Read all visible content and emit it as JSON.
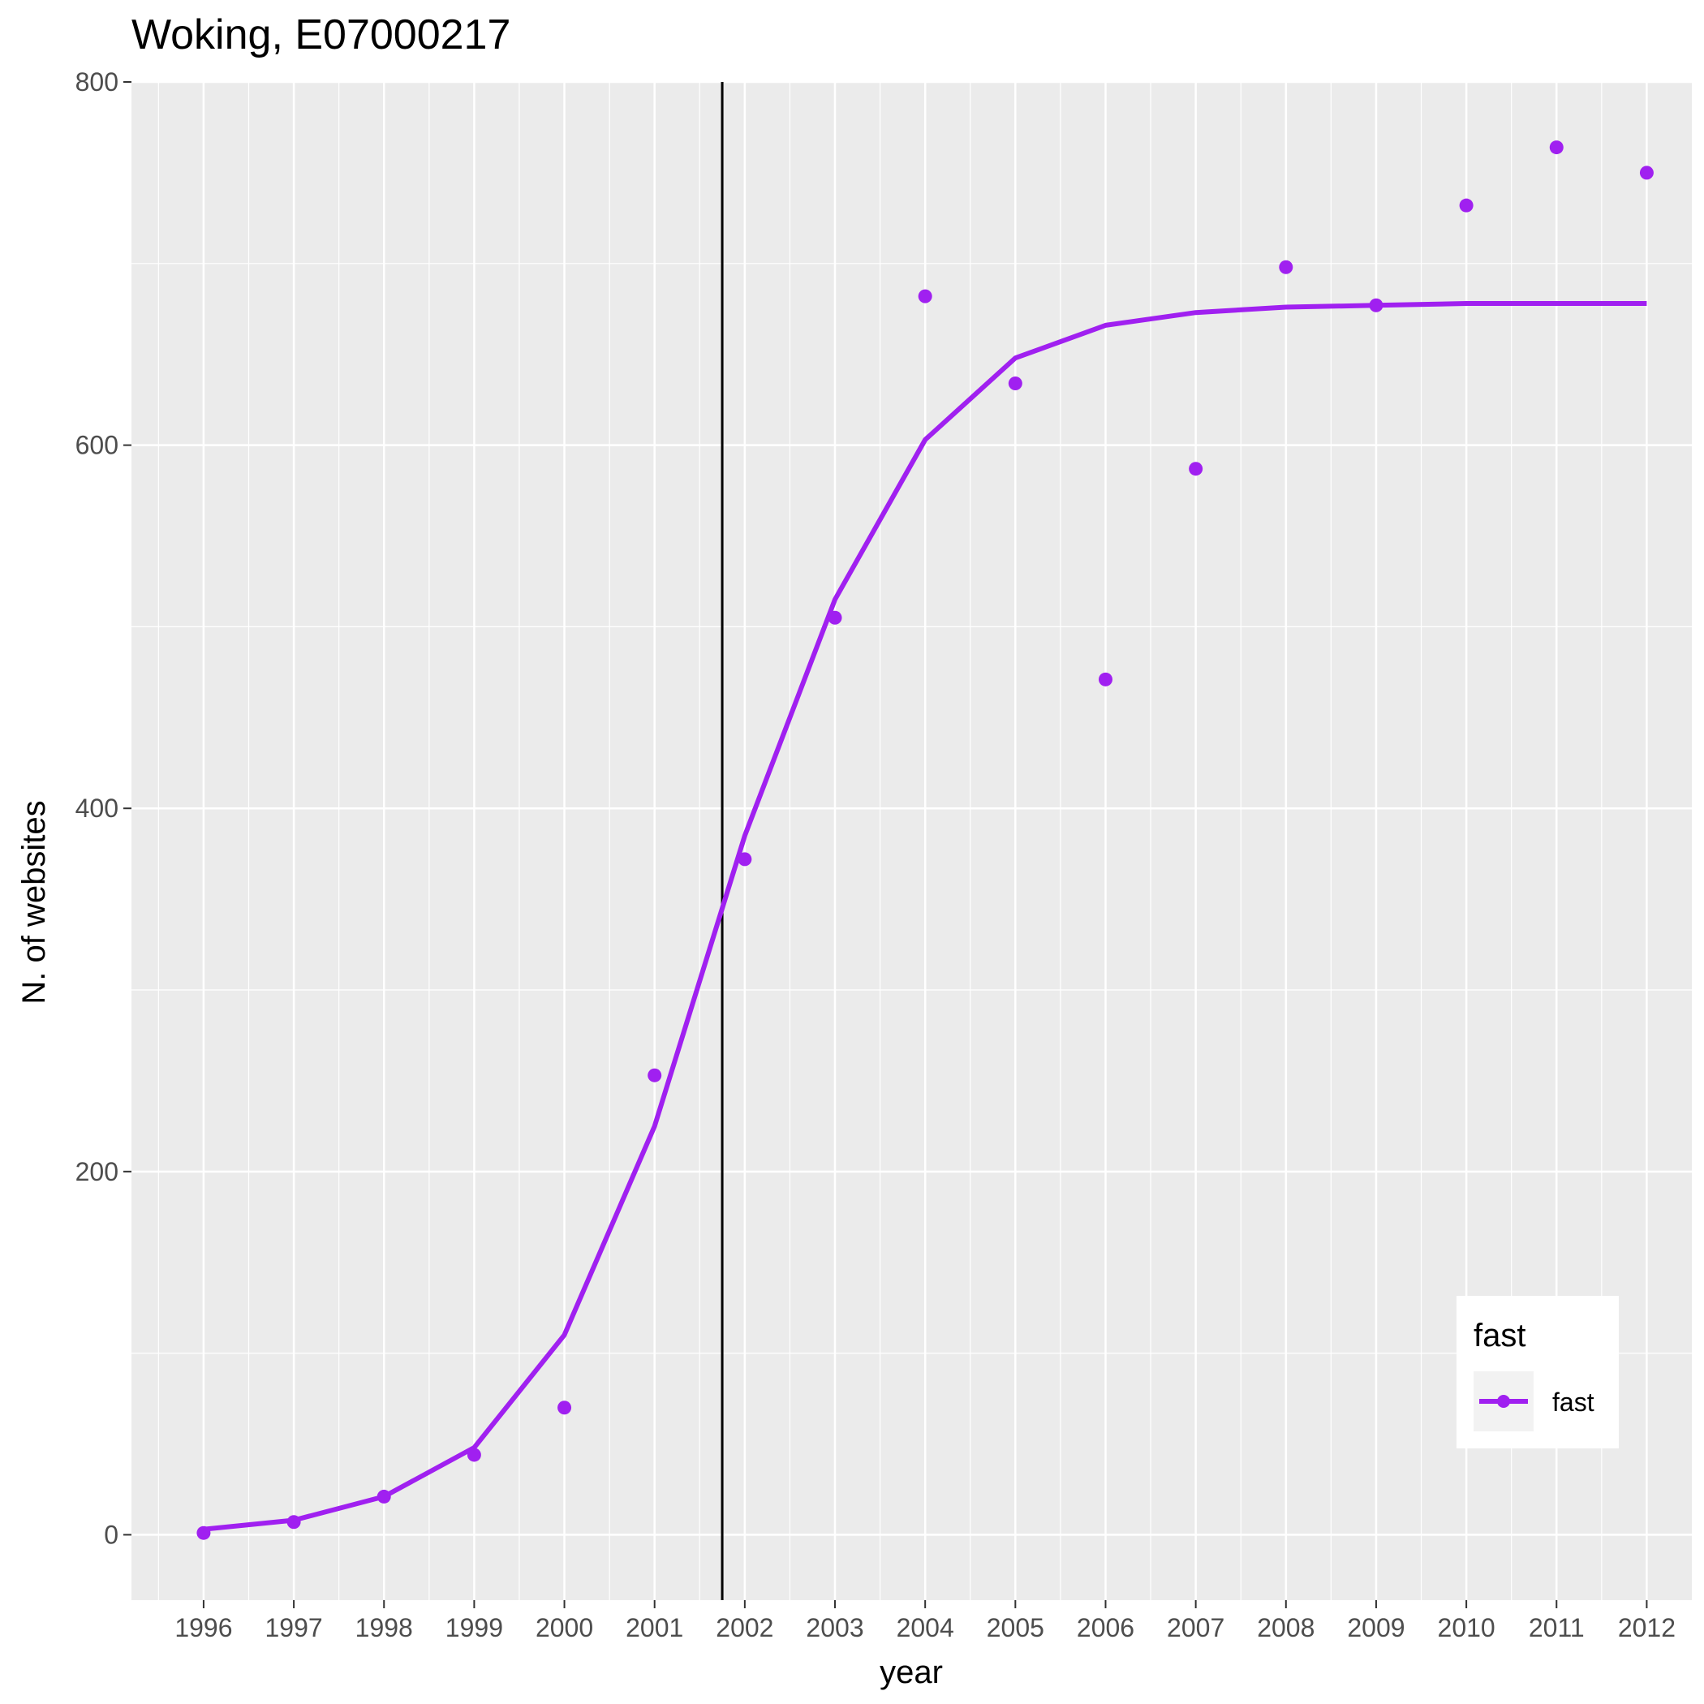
{
  "chart_data": {
    "type": "line",
    "title": "Woking, E07000217",
    "xlabel": "year",
    "ylabel": "N. of websites",
    "x": [
      1996,
      1997,
      1998,
      1999,
      2000,
      2001,
      2002,
      2003,
      2004,
      2005,
      2006,
      2007,
      2008,
      2009,
      2010,
      2011,
      2012
    ],
    "x_tick_labels": [
      "1996",
      "1997",
      "1998",
      "1999",
      "2000",
      "2001",
      "2002",
      "2003",
      "2004",
      "2005",
      "2006",
      "2007",
      "2008",
      "2009",
      "2010",
      "2011",
      "2012"
    ],
    "y_ticks": [
      0,
      200,
      400,
      600,
      800
    ],
    "y_tick_labels": [
      "0",
      "200",
      "400",
      "600",
      "800"
    ],
    "xlim": [
      1995.2,
      2012.5
    ],
    "ylim": [
      -36,
      800
    ],
    "grid": true,
    "vline_x": 2001.75,
    "series": [
      {
        "name": "fast",
        "color": "#a020f0",
        "points": [
          1,
          7,
          21,
          44,
          70,
          253,
          372,
          505,
          682,
          634,
          471,
          587,
          698,
          677,
          732,
          764,
          750
        ],
        "fitted": [
          3,
          8,
          21,
          48,
          110,
          225,
          385,
          515,
          603,
          648,
          666,
          673,
          676,
          677,
          678,
          678,
          678
        ]
      }
    ],
    "legend": {
      "title": "fast",
      "position": "bottom-right",
      "entries": [
        "fast"
      ]
    }
  }
}
